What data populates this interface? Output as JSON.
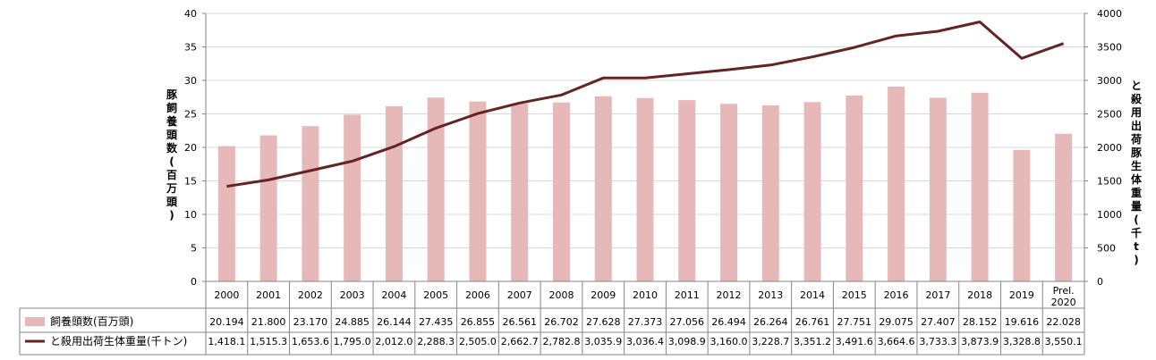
{
  "chart_data": {
    "type": "bar+line",
    "categories": [
      "2000",
      "2001",
      "2002",
      "2003",
      "2004",
      "2005",
      "2006",
      "2007",
      "2008",
      "2009",
      "2010",
      "2011",
      "2012",
      "2013",
      "2014",
      "2015",
      "2016",
      "2017",
      "2018",
      "2019",
      "Prel.\n2020"
    ],
    "series": [
      {
        "name": "飼養頭数(百万頭)",
        "type": "bar",
        "axis": "left",
        "color": "#e6b9b8",
        "values": [
          20.194,
          21.8,
          23.17,
          24.885,
          26.144,
          27.435,
          26.855,
          26.561,
          26.702,
          27.628,
          27.373,
          27.056,
          26.494,
          26.264,
          26.761,
          27.751,
          29.075,
          27.407,
          28.152,
          19.616,
          22.028
        ],
        "labels": [
          "20.194",
          "21.800",
          "23.170",
          "24.885",
          "26.144",
          "27.435",
          "26.855",
          "26.561",
          "26.702",
          "27.628",
          "27.373",
          "27.056",
          "26.494",
          "26.264",
          "26.761",
          "27.751",
          "29.075",
          "27.407",
          "28.152",
          "19.616",
          "22.028"
        ]
      },
      {
        "name": "と殺用出荷生体重量(千トン)",
        "type": "line",
        "axis": "right",
        "color": "#632423",
        "values": [
          1418.1,
          1515.3,
          1653.6,
          1795.0,
          2012.0,
          2288.3,
          2505.0,
          2662.7,
          2782.8,
          3035.9,
          3036.4,
          3098.9,
          3160.0,
          3228.7,
          3351.2,
          3491.6,
          3664.6,
          3733.3,
          3873.9,
          3328.8,
          3550.1
        ],
        "labels": [
          "1,418.1",
          "1,515.3",
          "1,653.6",
          "1,795.0",
          "2,012.0",
          "2,288.3",
          "2,505.0",
          "2,662.7",
          "2,782.8",
          "3,035.9",
          "3,036.4",
          "3,098.9",
          "3,160.0",
          "3,228.7",
          "3,351.2",
          "3,491.6",
          "3,664.6",
          "3,733.3",
          "3,873.9",
          "3,328.8",
          "3,550.1"
        ]
      }
    ],
    "y_left": {
      "label": "豚飼養頭数(百万頭)",
      "ylim": [
        0,
        40
      ],
      "ticks": [
        "0",
        "5",
        "10",
        "15",
        "20",
        "25",
        "30",
        "35",
        "40"
      ]
    },
    "y_right": {
      "label": "と殺用出荷豚生体重量(千t)",
      "ylim": [
        0,
        4000
      ],
      "ticks": [
        "0",
        "500",
        "1000",
        "1500",
        "2000",
        "2500",
        "3000",
        "3500",
        "4000"
      ]
    },
    "grid": true,
    "legend": "data-table"
  }
}
